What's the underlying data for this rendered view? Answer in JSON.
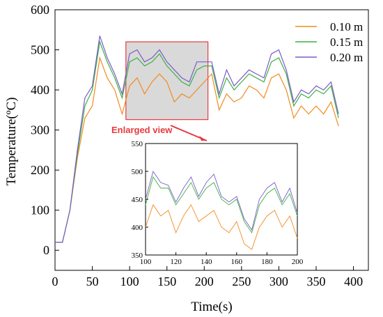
{
  "colors": {
    "s010": "#f28a1e",
    "s015": "#3cb043",
    "s020": "#7b5cc7",
    "highlight": "#e8393e",
    "highlight_fill": "#d9d9d9"
  },
  "chart_data": [
    {
      "type": "line",
      "xlabel": "Time(s)",
      "ylabel": "Temperature(ºC)",
      "xlim": [
        0,
        420
      ],
      "ylim": [
        -50,
        600
      ],
      "xticks": [
        0,
        50,
        100,
        150,
        200,
        250,
        300,
        350,
        400
      ],
      "yticks": [
        0,
        100,
        200,
        300,
        400,
        500,
        600
      ],
      "legend_position": "top-right",
      "series": [
        {
          "name": "0.10 m",
          "color_key": "s010",
          "x": [
            0,
            10,
            20,
            30,
            40,
            50,
            60,
            70,
            80,
            90,
            100,
            110,
            120,
            130,
            140,
            150,
            160,
            170,
            180,
            190,
            200,
            210,
            220,
            230,
            240,
            250,
            260,
            270,
            280,
            290,
            300,
            310,
            320,
            330,
            340,
            350,
            360,
            370,
            380
          ],
          "y": [
            20,
            20,
            100,
            230,
            330,
            360,
            480,
            430,
            400,
            340,
            410,
            430,
            390,
            420,
            440,
            420,
            370,
            390,
            380,
            400,
            420,
            440,
            350,
            390,
            370,
            380,
            410,
            400,
            380,
            430,
            440,
            400,
            330,
            360,
            340,
            360,
            340,
            370,
            310
          ]
        },
        {
          "name": "0.15 m",
          "color_key": "s015",
          "x": [
            0,
            10,
            20,
            30,
            40,
            50,
            60,
            70,
            80,
            90,
            100,
            110,
            120,
            130,
            140,
            150,
            160,
            170,
            180,
            190,
            200,
            210,
            220,
            230,
            240,
            250,
            260,
            270,
            280,
            290,
            300,
            310,
            320,
            330,
            340,
            350,
            360,
            370,
            380
          ],
          "y": [
            20,
            20,
            100,
            240,
            360,
            400,
            520,
            470,
            430,
            380,
            470,
            480,
            460,
            470,
            490,
            460,
            440,
            420,
            410,
            450,
            460,
            460,
            380,
            430,
            400,
            420,
            440,
            430,
            420,
            470,
            480,
            440,
            360,
            390,
            380,
            400,
            390,
            410,
            330
          ]
        },
        {
          "name": "0.20 m",
          "color_key": "s020",
          "x": [
            0,
            10,
            20,
            30,
            40,
            50,
            60,
            70,
            80,
            90,
            100,
            110,
            120,
            130,
            140,
            150,
            160,
            170,
            180,
            190,
            200,
            210,
            220,
            230,
            240,
            250,
            260,
            270,
            280,
            290,
            300,
            310,
            320,
            330,
            340,
            350,
            360,
            370,
            380
          ],
          "y": [
            20,
            20,
            100,
            250,
            380,
            410,
            535,
            480,
            440,
            390,
            490,
            500,
            470,
            480,
            500,
            470,
            450,
            430,
            420,
            470,
            470,
            470,
            390,
            450,
            410,
            430,
            450,
            440,
            430,
            490,
            500,
            450,
            370,
            400,
            390,
            410,
            400,
            420,
            340
          ]
        }
      ]
    },
    {
      "type": "line",
      "annotation": "Enlarged view",
      "xlim": [
        100,
        200
      ],
      "ylim": [
        350,
        550
      ],
      "xticks": [
        100,
        120,
        140,
        160,
        180,
        200
      ],
      "yticks": [
        350,
        400,
        450,
        500,
        550
      ],
      "series": [
        {
          "name": "0.10 m",
          "color_key": "s010",
          "x": [
            100,
            105,
            110,
            115,
            120,
            125,
            130,
            135,
            140,
            145,
            150,
            155,
            160,
            165,
            170,
            175,
            180,
            185,
            190,
            195,
            200
          ],
          "y": [
            400,
            440,
            420,
            430,
            390,
            420,
            440,
            410,
            420,
            430,
            400,
            390,
            410,
            370,
            360,
            400,
            420,
            430,
            400,
            420,
            380
          ]
        },
        {
          "name": "0.15 m",
          "color_key": "s015",
          "x": [
            100,
            105,
            110,
            115,
            120,
            125,
            130,
            135,
            140,
            145,
            150,
            155,
            160,
            165,
            170,
            175,
            180,
            185,
            190,
            195,
            200
          ],
          "y": [
            440,
            490,
            470,
            470,
            440,
            460,
            480,
            450,
            470,
            480,
            450,
            440,
            450,
            410,
            390,
            440,
            460,
            470,
            440,
            460,
            420
          ]
        },
        {
          "name": "0.20 m",
          "color_key": "s020",
          "x": [
            100,
            105,
            110,
            115,
            120,
            125,
            130,
            135,
            140,
            145,
            150,
            155,
            160,
            165,
            170,
            175,
            180,
            185,
            190,
            195,
            200
          ],
          "y": [
            450,
            500,
            480,
            475,
            445,
            470,
            490,
            455,
            480,
            495,
            455,
            445,
            455,
            415,
            395,
            450,
            470,
            480,
            445,
            470,
            425
          ]
        }
      ]
    }
  ]
}
